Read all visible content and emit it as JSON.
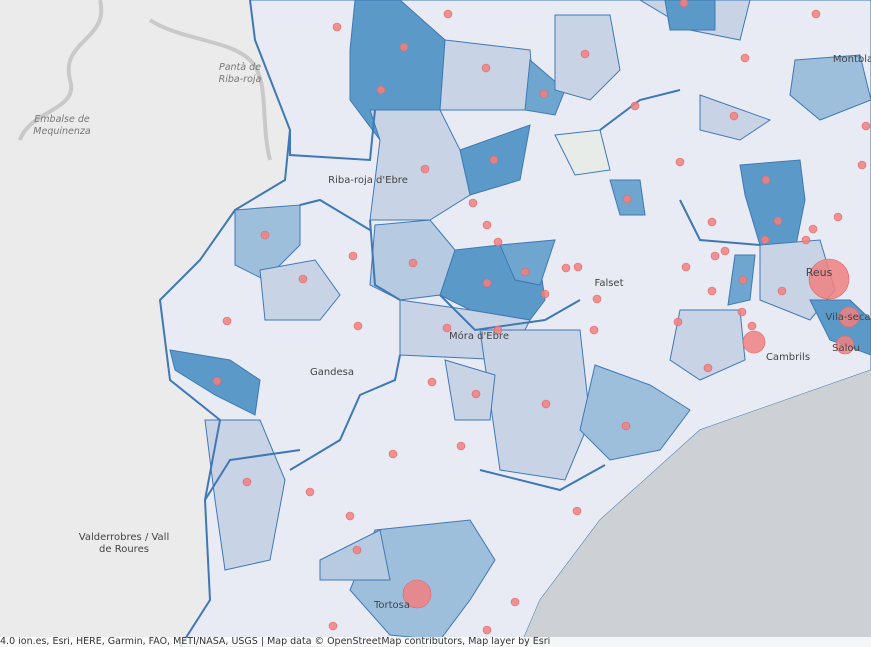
{
  "map_labels": [
    [
      "Pantà de",
      "Riba-roja"
    ],
    [
      "Embalse de",
      "Mequinenza"
    ],
    [
      "Riba-roja d'Ebre"
    ],
    [
      "Falset"
    ],
    [
      "Móra d'Ebre"
    ],
    [
      "Gandesa"
    ],
    [
      "Reus"
    ],
    [
      "Vila-seca"
    ],
    [
      "Salou"
    ],
    [
      "Cambrils"
    ],
    [
      "Montbla"
    ],
    [
      "Valderrobres / Vall",
      "de Roures"
    ],
    [
      "Tortosa"
    ]
  ],
  "attribution": "4.0 ion.es, Esri, HERE, Garmin, FAO, METI/NASA, USGS | Map data © OpenStreetMap contributors, Map layer by Esri"
}
